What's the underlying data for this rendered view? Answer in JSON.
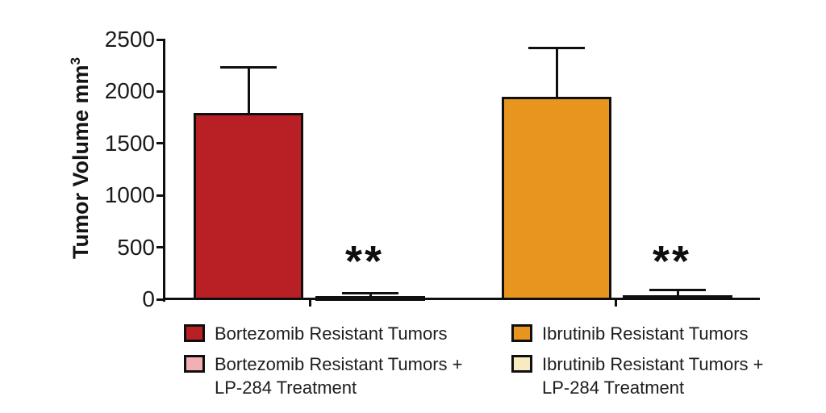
{
  "figure": {
    "background": "#ffffff",
    "axis_color": "#0f0f0f",
    "text_color": "#1a1a1a"
  },
  "chart_data": {
    "type": "bar",
    "title": "",
    "ylabel": "Tumor Volume mm",
    "ylabel_superscript": "3",
    "xlabel": "",
    "ylim": [
      0,
      2500
    ],
    "yticks": [
      0,
      500,
      1000,
      1500,
      2000,
      2500
    ],
    "grid": false,
    "legend_position": "bottom",
    "bars": [
      {
        "id": "bortezomib-resistant",
        "label": "Bortezomib Resistant Tumors",
        "value": 1790,
        "error_upper": 2230,
        "fill": "#b82025",
        "annotation": ""
      },
      {
        "id": "bortezomib-lp284",
        "label": "Bortezomib Resistant Tumors + LP-284 Treatment",
        "value": 30,
        "error_upper": 55,
        "fill": "#f3b0b4",
        "annotation": "**"
      },
      {
        "id": "ibrutinib-resistant",
        "label": "Ibrutinib Resistant Tumors",
        "value": 1950,
        "error_upper": 2415,
        "fill": "#e8951f",
        "annotation": ""
      },
      {
        "id": "ibrutinib-lp284",
        "label": "Ibrutinib Resistant Tumors + LP-284 Treatment",
        "value": 40,
        "error_upper": 90,
        "fill": "#faeac2",
        "annotation": "**"
      }
    ],
    "legend": [
      {
        "id": "bortezomib-resistant",
        "swatch": "#b82025",
        "lines": [
          "Bortezomib Resistant Tumors"
        ]
      },
      {
        "id": "bortezomib-lp284",
        "swatch": "#f3b0b4",
        "lines": [
          "Bortezomib Resistant Tumors +",
          "LP-284 Treatment"
        ]
      },
      {
        "id": "ibrutinib-resistant",
        "swatch": "#e8951f",
        "lines": [
          "Ibrutinib Resistant Tumors"
        ]
      },
      {
        "id": "ibrutinib-lp284",
        "swatch": "#faeac2",
        "lines": [
          "Ibrutinib Resistant Tumors +",
          "LP-284 Treatment"
        ]
      }
    ]
  }
}
